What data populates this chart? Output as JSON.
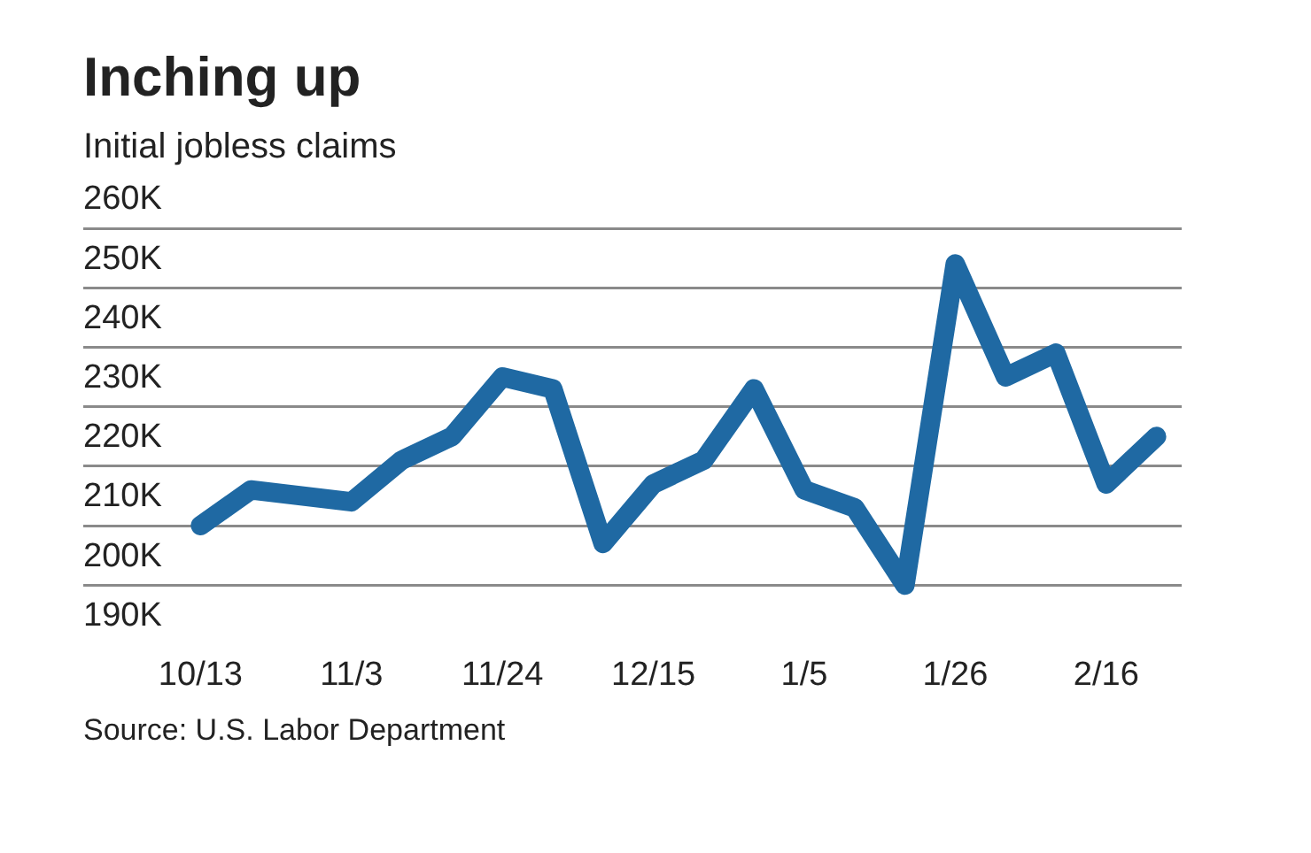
{
  "chart_data": {
    "type": "line",
    "title": "Inching up",
    "subtitle": "Initial jobless claims",
    "categories": [
      "10/13",
      null,
      null,
      "11/3",
      null,
      null,
      "11/24",
      null,
      null,
      "12/15",
      null,
      null,
      "1/5",
      null,
      null,
      "1/26",
      null,
      null,
      "2/16",
      null
    ],
    "series": [
      {
        "color": "#1f69a3",
        "values": [
          210,
          216,
          215,
          214,
          221,
          225,
          235,
          233,
          207,
          217,
          221,
          233,
          216,
          213,
          200,
          254,
          235,
          239,
          217,
          225
        ]
      }
    ],
    "ylim": [
      190,
      260
    ],
    "yticks": [
      {
        "value": 190,
        "label": "190K"
      },
      {
        "value": 200,
        "label": "200K"
      },
      {
        "value": 210,
        "label": "210K"
      },
      {
        "value": 220,
        "label": "220K"
      },
      {
        "value": 230,
        "label": "230K"
      },
      {
        "value": 240,
        "label": "240K"
      },
      {
        "value": 250,
        "label": "250K"
      },
      {
        "value": 260,
        "label": "260K"
      }
    ],
    "grid": "y",
    "legend": false,
    "marker": "none",
    "line_style": "solid",
    "annotations": [
      "Source: U.S. Labor Department"
    ]
  }
}
